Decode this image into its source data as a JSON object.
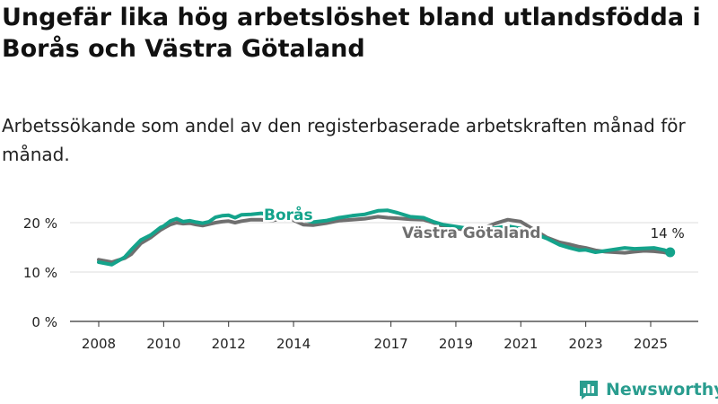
{
  "title": "Ungefär lika hög arbetslöshet bland utlandsfödda i Borås och Västra Götaland",
  "subtitle": "Arbetssökande som andel av den registerbaserade arbetskraften månad för månad.",
  "brand": {
    "name": "Newsworthy",
    "icon": "newsworthy-logo-icon"
  },
  "colors": {
    "boras": "#14a38b",
    "vg": "#6f6f6f",
    "grid": "#dddddd",
    "axis": "#333333"
  },
  "chart_data": {
    "type": "line",
    "title": "Ungefär lika hög arbetslöshet bland utlandsfödda i Borås och Västra Götaland",
    "subtitle": "Arbetssökande som andel av den registerbaserade arbetskraften månad för månad.",
    "xlabel": "",
    "ylabel": "",
    "ylim": [
      0,
      25
    ],
    "xlim": [
      2008,
      2026.5
    ],
    "y_ticks": [
      0,
      10,
      20
    ],
    "y_tick_labels": [
      "0 %",
      "10 %",
      "20 %"
    ],
    "x_ticks": [
      2008,
      2010,
      2012,
      2014,
      2017,
      2019,
      2021,
      2023,
      2025
    ],
    "x_tick_labels": [
      "2008",
      "2010",
      "2012",
      "2014",
      "2017",
      "2019",
      "2021",
      "2023",
      "2025"
    ],
    "grid": "horizontal",
    "end_label": "14 %",
    "series": [
      {
        "name": "Borås",
        "color": "#14a38b",
        "points": [
          [
            2008.0,
            12.0
          ],
          [
            2008.4,
            11.5
          ],
          [
            2008.8,
            13.0
          ],
          [
            2009.0,
            14.5
          ],
          [
            2009.3,
            16.5
          ],
          [
            2009.6,
            17.5
          ],
          [
            2009.9,
            19.0
          ],
          [
            2010.0,
            19.3
          ],
          [
            2010.2,
            20.3
          ],
          [
            2010.4,
            20.8
          ],
          [
            2010.6,
            20.2
          ],
          [
            2010.8,
            20.4
          ],
          [
            2011.0,
            20.1
          ],
          [
            2011.2,
            19.9
          ],
          [
            2011.4,
            20.2
          ],
          [
            2011.6,
            21.1
          ],
          [
            2011.8,
            21.4
          ],
          [
            2012.0,
            21.5
          ],
          [
            2012.2,
            21.0
          ],
          [
            2012.4,
            21.6
          ],
          [
            2012.7,
            21.7
          ],
          [
            2013.0,
            21.9
          ],
          [
            2013.3,
            21.6
          ],
          [
            2013.6,
            22.1
          ],
          [
            2014.0,
            21.4
          ],
          [
            2014.3,
            20.6
          ],
          [
            2014.6,
            20.1
          ],
          [
            2015.0,
            20.4
          ],
          [
            2015.4,
            21.0
          ],
          [
            2015.8,
            21.4
          ],
          [
            2016.2,
            21.7
          ],
          [
            2016.6,
            22.4
          ],
          [
            2016.9,
            22.5
          ],
          [
            2017.2,
            22.0
          ],
          [
            2017.6,
            21.2
          ],
          [
            2018.0,
            21.0
          ],
          [
            2018.3,
            20.2
          ],
          [
            2018.6,
            19.6
          ],
          [
            2019.0,
            19.2
          ],
          [
            2019.4,
            18.8
          ],
          [
            2019.8,
            18.6
          ],
          [
            2020.2,
            18.9
          ],
          [
            2020.6,
            19.3
          ],
          [
            2021.0,
            18.8
          ],
          [
            2021.4,
            17.8
          ],
          [
            2021.8,
            16.8
          ],
          [
            2022.2,
            15.5
          ],
          [
            2022.5,
            14.9
          ],
          [
            2022.8,
            14.4
          ],
          [
            2023.0,
            14.5
          ],
          [
            2023.3,
            14.0
          ],
          [
            2023.6,
            14.3
          ],
          [
            2023.9,
            14.6
          ],
          [
            2024.2,
            14.9
          ],
          [
            2024.5,
            14.7
          ],
          [
            2024.8,
            14.8
          ],
          [
            2025.1,
            14.9
          ],
          [
            2025.4,
            14.5
          ],
          [
            2025.6,
            14.0
          ]
        ]
      },
      {
        "name": "Västra Götaland",
        "color": "#6f6f6f",
        "points": [
          [
            2008.0,
            12.5
          ],
          [
            2008.4,
            12.0
          ],
          [
            2008.8,
            12.8
          ],
          [
            2009.0,
            13.6
          ],
          [
            2009.3,
            15.8
          ],
          [
            2009.6,
            17.0
          ],
          [
            2009.9,
            18.5
          ],
          [
            2010.0,
            18.9
          ],
          [
            2010.2,
            19.6
          ],
          [
            2010.4,
            20.0
          ],
          [
            2010.6,
            19.8
          ],
          [
            2010.8,
            19.9
          ],
          [
            2011.0,
            19.6
          ],
          [
            2011.2,
            19.4
          ],
          [
            2011.4,
            19.7
          ],
          [
            2011.6,
            20.0
          ],
          [
            2011.8,
            20.2
          ],
          [
            2012.0,
            20.3
          ],
          [
            2012.2,
            20.0
          ],
          [
            2012.4,
            20.3
          ],
          [
            2012.7,
            20.6
          ],
          [
            2013.0,
            20.6
          ],
          [
            2013.3,
            20.4
          ],
          [
            2013.6,
            20.7
          ],
          [
            2014.0,
            20.5
          ],
          [
            2014.3,
            19.6
          ],
          [
            2014.6,
            19.5
          ],
          [
            2015.0,
            19.9
          ],
          [
            2015.4,
            20.4
          ],
          [
            2015.8,
            20.6
          ],
          [
            2016.2,
            20.8
          ],
          [
            2016.6,
            21.2
          ],
          [
            2016.9,
            21.0
          ],
          [
            2017.2,
            20.9
          ],
          [
            2017.6,
            20.7
          ],
          [
            2018.0,
            20.6
          ],
          [
            2018.3,
            20.0
          ],
          [
            2018.6,
            19.3
          ],
          [
            2019.0,
            18.8
          ],
          [
            2019.4,
            18.5
          ],
          [
            2019.8,
            18.8
          ],
          [
            2020.2,
            19.8
          ],
          [
            2020.6,
            20.6
          ],
          [
            2021.0,
            20.2
          ],
          [
            2021.4,
            18.6
          ],
          [
            2021.8,
            17.0
          ],
          [
            2022.2,
            16.0
          ],
          [
            2022.5,
            15.6
          ],
          [
            2022.8,
            15.1
          ],
          [
            2023.0,
            14.9
          ],
          [
            2023.3,
            14.4
          ],
          [
            2023.6,
            14.1
          ],
          [
            2023.9,
            14.0
          ],
          [
            2024.2,
            13.9
          ],
          [
            2024.5,
            14.1
          ],
          [
            2024.8,
            14.3
          ],
          [
            2025.1,
            14.2
          ],
          [
            2025.4,
            14.0
          ],
          [
            2025.6,
            13.7
          ]
        ]
      }
    ]
  }
}
